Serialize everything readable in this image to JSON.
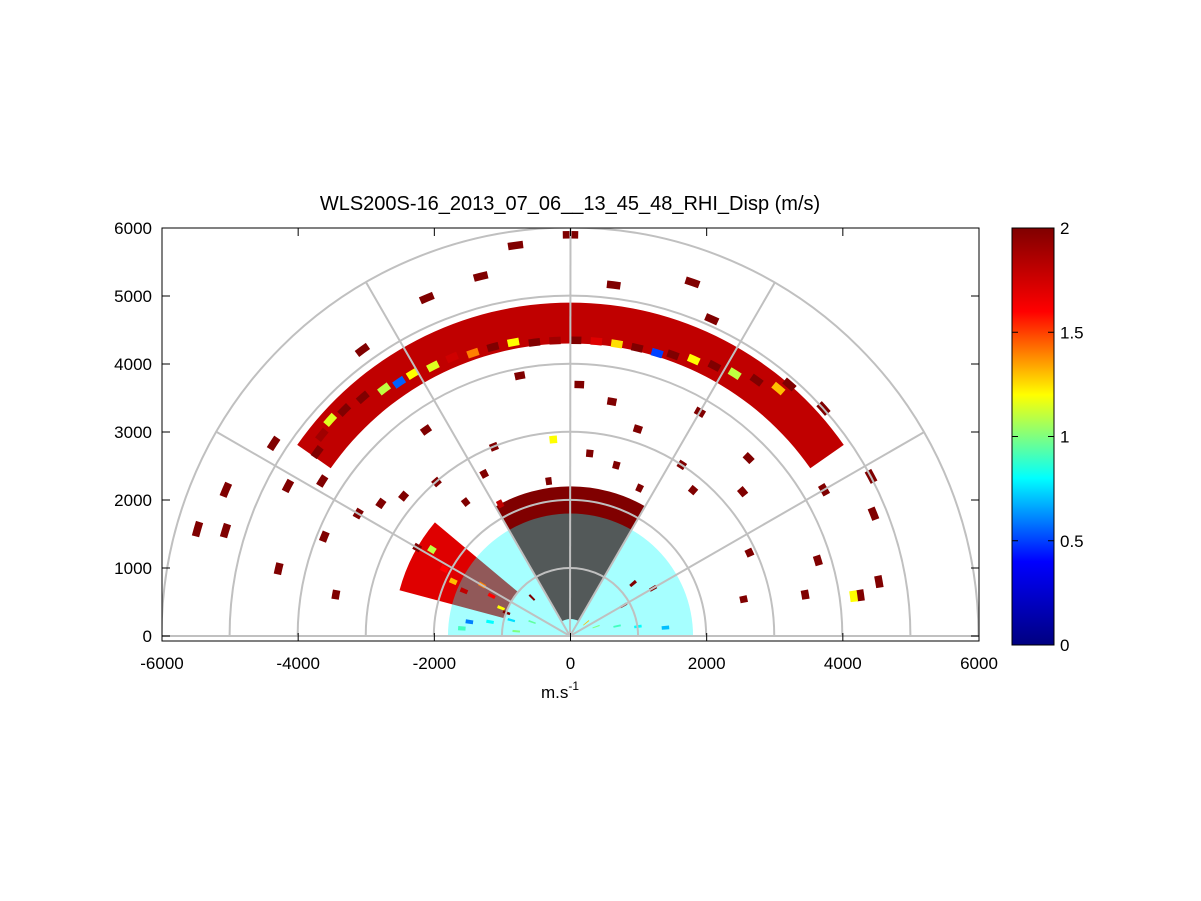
{
  "chart_data": {
    "type": "heatmap",
    "subtype": "polar RHI scan (half-disc)",
    "title": "WLS200S-16_2013_07_06__13_45_48_RHI_Disp (m/s)",
    "xlabel_base": "m.s",
    "xlabel_exponent": "-1",
    "ylabel": "",
    "xlim": [
      -6000,
      6000
    ],
    "ylim": [
      0,
      6000
    ],
    "xticks": [
      -6000,
      -4000,
      -2000,
      0,
      2000,
      4000,
      6000
    ],
    "xtick_labels": [
      "-6000",
      "-4000",
      "-2000",
      "0",
      "2000",
      "4000",
      "6000"
    ],
    "yticks": [
      0,
      1000,
      2000,
      3000,
      4000,
      5000,
      6000
    ],
    "ytick_labels": [
      "0",
      "1000",
      "2000",
      "3000",
      "4000",
      "5000",
      "6000"
    ],
    "polar_grid": {
      "range_rings": [
        1000,
        2000,
        3000,
        4000,
        5000,
        6000
      ],
      "radial_angles_deg": [
        0,
        30,
        60,
        90,
        120,
        150,
        180
      ]
    },
    "colorbar": {
      "colormap": "jet",
      "range": [
        0,
        2
      ],
      "ticks": [
        0,
        0.5,
        1,
        1.5,
        2
      ],
      "tick_labels": [
        "0",
        "0.5",
        "1",
        "1.5",
        "2"
      ],
      "stops": [
        "#000080",
        "#0000ff",
        "#00ffff",
        "#ffff00",
        "#ff0000",
        "#800000"
      ]
    },
    "data_regions": [
      {
        "name": "dense cone near zenith",
        "theta_deg": [
          60,
          120
        ],
        "range_m": [
          250,
          2200
        ],
        "value": 2
      },
      {
        "name": "high-dispersion band left",
        "theta_deg": [
          140,
          165
        ],
        "range_m": [
          1000,
          2600
        ],
        "value": 1.7
      },
      {
        "name": "low-level fan",
        "theta_deg": [
          0,
          180
        ],
        "range_m": [
          0,
          1800
        ],
        "value": 0.8
      },
      {
        "name": "upper cloud layer",
        "theta_deg": [
          35,
          145
        ],
        "range_m": [
          4300,
          4900
        ],
        "value": 1.8
      }
    ],
    "cells": [
      {
        "r": 4600,
        "th": 144,
        "v": 2
      },
      {
        "r": 4700,
        "th": 141,
        "v": 1.9
      },
      {
        "r": 4750,
        "th": 138,
        "v": 1.15
      },
      {
        "r": 4700,
        "th": 135,
        "v": 2
      },
      {
        "r": 4650,
        "th": 131,
        "v": 2
      },
      {
        "r": 4550,
        "th": 127,
        "v": 1.1
      },
      {
        "r": 4500,
        "th": 124,
        "v": 0.55
      },
      {
        "r": 4500,
        "th": 121,
        "v": 1.2
      },
      {
        "r": 4450,
        "th": 117,
        "v": 1.15
      },
      {
        "r": 4450,
        "th": 113,
        "v": 1.75
      },
      {
        "r": 4400,
        "th": 109,
        "v": 1.4
      },
      {
        "r": 4400,
        "th": 105,
        "v": 2
      },
      {
        "r": 4400,
        "th": 101,
        "v": 1.2
      },
      {
        "r": 4350,
        "th": 97,
        "v": 2
      },
      {
        "r": 4350,
        "th": 93,
        "v": 1.9
      },
      {
        "r": 4350,
        "th": 89,
        "v": 2
      },
      {
        "r": 4350,
        "th": 85,
        "v": 1.7
      },
      {
        "r": 4350,
        "th": 81,
        "v": 1.25
      },
      {
        "r": 4350,
        "th": 77,
        "v": 2
      },
      {
        "r": 4350,
        "th": 73,
        "v": 0.5
      },
      {
        "r": 4400,
        "th": 70,
        "v": 2
      },
      {
        "r": 4450,
        "th": 66,
        "v": 1.2
      },
      {
        "r": 4500,
        "th": 62,
        "v": 2
      },
      {
        "r": 4550,
        "th": 58,
        "v": 1.1
      },
      {
        "r": 4650,
        "th": 54,
        "v": 2
      },
      {
        "r": 4750,
        "th": 50,
        "v": 1.3
      },
      {
        "r": 2100,
        "th": 152,
        "v": 1.6
      },
      {
        "r": 1900,
        "th": 155,
        "v": 1.3
      },
      {
        "r": 1700,
        "th": 157,
        "v": 1.8
      },
      {
        "r": 1500,
        "th": 150,
        "v": 1.4
      },
      {
        "r": 1300,
        "th": 153,
        "v": 1.6
      },
      {
        "r": 1100,
        "th": 158,
        "v": 1.2
      },
      {
        "r": 2400,
        "th": 148,
        "v": 1.1
      },
      {
        "r": 2600,
        "th": 150,
        "v": 2
      },
      {
        "r": 900,
        "th": 165,
        "v": 0.75
      },
      {
        "r": 1200,
        "th": 170,
        "v": 0.8
      },
      {
        "r": 1500,
        "th": 172,
        "v": 0.6
      },
      {
        "r": 800,
        "th": 175,
        "v": 1.0
      },
      {
        "r": 1600,
        "th": 176,
        "v": 0.9
      },
      {
        "r": 1000,
        "th": 8,
        "v": 0.8
      },
      {
        "r": 1400,
        "th": 5,
        "v": 0.7
      },
      {
        "r": 700,
        "th": 12,
        "v": 0.9
      },
      {
        "r": 400,
        "th": 20,
        "v": 1.0
      },
      {
        "r": 600,
        "th": 160,
        "v": 0.95
      },
      {
        "r": 300,
        "th": 40,
        "v": 1.3
      },
      {
        "r": 5800,
        "th": 98,
        "v": 2
      },
      {
        "r": 5900,
        "th": 90,
        "v": 2
      },
      {
        "r": 5450,
        "th": 104,
        "v": 2
      },
      {
        "r": 5200,
        "th": 83,
        "v": 2
      },
      {
        "r": 5500,
        "th": 71,
        "v": 2
      },
      {
        "r": 5100,
        "th": 66,
        "v": 2
      },
      {
        "r": 5200,
        "th": 126,
        "v": 2
      },
      {
        "r": 5400,
        "th": 113,
        "v": 2
      },
      {
        "r": 4900,
        "th": 49,
        "v": 2
      },
      {
        "r": 5000,
        "th": 42,
        "v": 2
      },
      {
        "r": 5000,
        "th": 28,
        "v": 2
      },
      {
        "r": 4800,
        "th": 22,
        "v": 2
      },
      {
        "r": 5500,
        "th": 157,
        "v": 2
      },
      {
        "r": 5700,
        "th": 164,
        "v": 2
      },
      {
        "r": 5300,
        "th": 163,
        "v": 2
      },
      {
        "r": 4400,
        "th": 167,
        "v": 2
      },
      {
        "r": 5200,
        "th": 147,
        "v": 2
      },
      {
        "r": 4700,
        "th": 152,
        "v": 2
      },
      {
        "r": 4300,
        "th": 148,
        "v": 2
      },
      {
        "r": 3500,
        "th": 170,
        "v": 2
      },
      {
        "r": 3900,
        "th": 158,
        "v": 2
      },
      {
        "r": 3600,
        "th": 150,
        "v": 2
      },
      {
        "r": 3400,
        "th": 145,
        "v": 2
      },
      {
        "r": 3200,
        "th": 140,
        "v": 2
      },
      {
        "r": 3000,
        "th": 131,
        "v": 2
      },
      {
        "r": 3700,
        "th": 125,
        "v": 2
      },
      {
        "r": 3900,
        "th": 101,
        "v": 2
      },
      {
        "r": 3700,
        "th": 88,
        "v": 2
      },
      {
        "r": 3500,
        "th": 80,
        "v": 2
      },
      {
        "r": 3200,
        "th": 72,
        "v": 2
      },
      {
        "r": 3800,
        "th": 60,
        "v": 2
      },
      {
        "r": 3700,
        "th": 45,
        "v": 2
      },
      {
        "r": 3300,
        "th": 40,
        "v": 2
      },
      {
        "r": 3000,
        "th": 57,
        "v": 2
      },
      {
        "r": 2800,
        "th": 50,
        "v": 2
      },
      {
        "r": 4300,
        "th": 30,
        "v": 2
      },
      {
        "r": 3800,
        "th": 17,
        "v": 2
      },
      {
        "r": 3500,
        "th": 10,
        "v": 2
      },
      {
        "r": 4300,
        "th": 8,
        "v": 2
      },
      {
        "r": 4600,
        "th": 10,
        "v": 2
      },
      {
        "r": 4200,
        "th": 8,
        "v": 1.2
      },
      {
        "r": 2900,
        "th": 25,
        "v": 2
      },
      {
        "r": 2600,
        "th": 12,
        "v": 2
      },
      {
        "r": 3000,
        "th": 112,
        "v": 2
      },
      {
        "r": 2700,
        "th": 118,
        "v": 2
      },
      {
        "r": 2500,
        "th": 128,
        "v": 2
      },
      {
        "r": 2300,
        "th": 98,
        "v": 2
      },
      {
        "r": 2700,
        "th": 84,
        "v": 2
      },
      {
        "r": 2600,
        "th": 75,
        "v": 2
      },
      {
        "r": 2400,
        "th": 65,
        "v": 2
      },
      {
        "r": 2900,
        "th": 95,
        "v": 1.2
      },
      {
        "r": 2200,
        "th": 118,
        "v": 1.8
      },
      {
        "r": 1200,
        "th": 40,
        "v": 2
      },
      {
        "r": 900,
        "th": 30,
        "v": 2
      },
      {
        "r": 1400,
        "th": 30,
        "v": 2
      },
      {
        "r": 800,
        "th": 135,
        "v": 2
      },
      {
        "r": 1000,
        "th": 160,
        "v": 2
      }
    ]
  }
}
